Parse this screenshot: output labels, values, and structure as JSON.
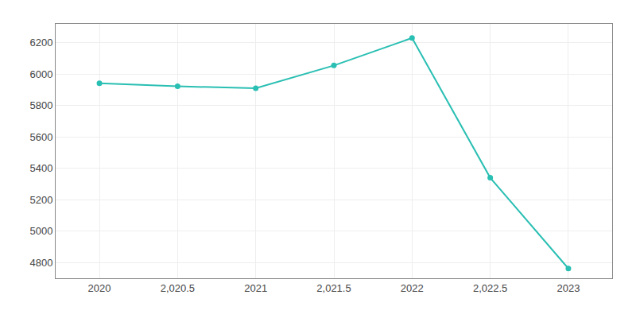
{
  "chart_data": {
    "type": "line",
    "x": [
      2020,
      2020.5,
      2021,
      2021.5,
      2022,
      2022.5,
      2023
    ],
    "values": [
      5942,
      5922,
      5910,
      6055,
      6230,
      5340,
      4762
    ],
    "color": "#2abfb3",
    "marker": "circle",
    "xlim": [
      2019.72,
      2023.28
    ],
    "xticks": [
      2020,
      {
        "value": 2020.5,
        "label": "2,020.5"
      },
      2021,
      {
        "value": 2021.5,
        "label": "2,021.5"
      },
      2022,
      {
        "value": 2022.5,
        "label": "2,022.5"
      },
      2023
    ],
    "ylim": [
      4700,
      6320
    ],
    "yticks": [
      4800,
      5000,
      5200,
      5400,
      5600,
      5800,
      6000,
      6200
    ],
    "grid": true
  }
}
